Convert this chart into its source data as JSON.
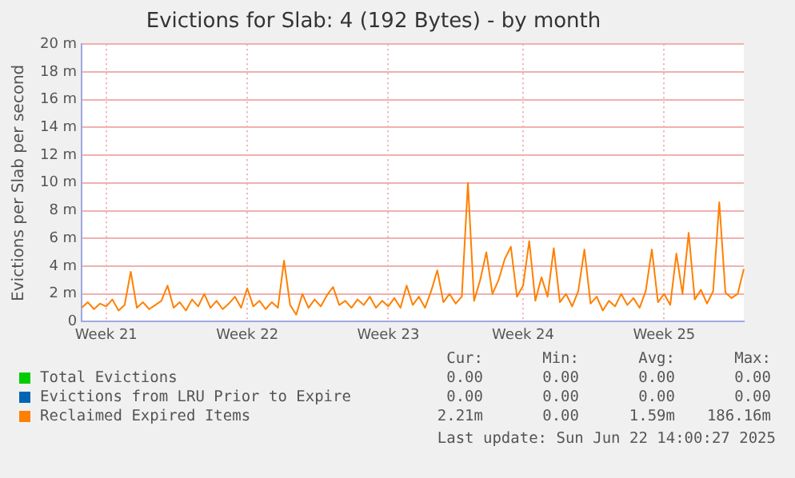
{
  "chart_data": {
    "type": "line",
    "title": "Evictions for Slab: 4 (192 Bytes) - by month",
    "ylabel": "Evictions per Slab per second",
    "categories": [
      null,
      null,
      null,
      null,
      "Week 21",
      null,
      null,
      null,
      null,
      null,
      null,
      null,
      null,
      null,
      null,
      null,
      null,
      null,
      null,
      null,
      null,
      null,
      null,
      null,
      null,
      null,
      null,
      "Week 22",
      null,
      null,
      null,
      null,
      null,
      null,
      null,
      null,
      null,
      null,
      null,
      null,
      null,
      null,
      null,
      null,
      null,
      null,
      null,
      null,
      null,
      null,
      "Week 23",
      null,
      null,
      null,
      null,
      null,
      null,
      null,
      null,
      null,
      null,
      null,
      null,
      null,
      null,
      null,
      null,
      null,
      null,
      null,
      null,
      null,
      "Week 24",
      null,
      null,
      null,
      null,
      null,
      null,
      null,
      null,
      null,
      null,
      null,
      null,
      null,
      null,
      null,
      null,
      null,
      null,
      null,
      null,
      null,
      null,
      "Week 25",
      null,
      null,
      null,
      null,
      null,
      null,
      null,
      null,
      null,
      null,
      null,
      null,
      null
    ],
    "ylim": [
      0,
      20
    ],
    "yticks": [
      0,
      {
        "value": 2,
        "label": "2 m"
      },
      {
        "value": 4,
        "label": "4 m"
      },
      {
        "value": 6,
        "label": "6 m"
      },
      {
        "value": 8,
        "label": "8 m"
      },
      {
        "value": 10,
        "label": "10 m"
      },
      {
        "value": 12,
        "label": "12 m"
      },
      {
        "value": 14,
        "label": "14 m"
      },
      {
        "value": 16,
        "label": "16 m"
      },
      {
        "value": 18,
        "label": "18 m"
      },
      {
        "value": 20,
        "label": "20 m"
      }
    ],
    "grid": true,
    "legend": "bottom",
    "marker": "none",
    "series": [
      {
        "name": "Total Evictions",
        "color": "#00cc00",
        "values": [
          null,
          null,
          null,
          null,
          null,
          null,
          null,
          null,
          null,
          null,
          null,
          null,
          null,
          null,
          null,
          null,
          null,
          null,
          null,
          null,
          null,
          null,
          null,
          null,
          null,
          null,
          null,
          null,
          null,
          null,
          null,
          null,
          null,
          null,
          null,
          null,
          null,
          null,
          null,
          null,
          null,
          null,
          null,
          null,
          null,
          null,
          null,
          null,
          null,
          null,
          null,
          null,
          null,
          null,
          null,
          null,
          null,
          null,
          null,
          null,
          null,
          null,
          null,
          null,
          null,
          null,
          null,
          null,
          null,
          null,
          null,
          null,
          null,
          null,
          null,
          null,
          null,
          null,
          null,
          null,
          null,
          null,
          null,
          null,
          null,
          null,
          null,
          null,
          null,
          null,
          null,
          null,
          null,
          null,
          null,
          null,
          null,
          null,
          null,
          null,
          null,
          null,
          null,
          null,
          null,
          null,
          null,
          null,
          null
        ]
      },
      {
        "name": "Evictions from LRU Prior to Expire",
        "color": "#0066b3",
        "values": [
          null,
          null,
          null,
          null,
          null,
          null,
          null,
          null,
          null,
          null,
          null,
          null,
          null,
          null,
          null,
          null,
          null,
          null,
          null,
          null,
          null,
          null,
          null,
          null,
          null,
          null,
          null,
          null,
          null,
          null,
          null,
          null,
          null,
          null,
          null,
          null,
          null,
          null,
          null,
          null,
          null,
          null,
          null,
          null,
          null,
          null,
          null,
          null,
          null,
          null,
          null,
          null,
          null,
          null,
          null,
          null,
          null,
          null,
          null,
          null,
          null,
          null,
          null,
          null,
          null,
          null,
          null,
          null,
          null,
          null,
          null,
          null,
          null,
          null,
          null,
          null,
          null,
          null,
          null,
          null,
          null,
          null,
          null,
          null,
          null,
          null,
          null,
          null,
          null,
          null,
          null,
          null,
          null,
          null,
          null,
          null,
          null,
          null,
          null,
          null,
          null,
          null,
          null,
          null,
          null,
          null,
          null,
          null,
          null
        ]
      },
      {
        "name": "Reclaimed Expired Items",
        "color": "#ff8000",
        "values": [
          1.0,
          1.4,
          0.9,
          1.3,
          1.1,
          1.6,
          0.8,
          1.2,
          3.6,
          1.0,
          1.4,
          0.9,
          1.2,
          1.5,
          2.6,
          1.0,
          1.4,
          0.8,
          1.6,
          1.1,
          2.0,
          1.0,
          1.5,
          0.9,
          1.3,
          1.8,
          1.0,
          2.4,
          1.1,
          1.5,
          0.9,
          1.4,
          1.0,
          4.4,
          1.2,
          0.5,
          2.0,
          1.0,
          1.6,
          1.1,
          1.9,
          2.5,
          1.2,
          1.5,
          1.0,
          1.6,
          1.2,
          1.8,
          1.0,
          1.5,
          1.1,
          1.7,
          1.0,
          2.6,
          1.2,
          1.8,
          1.0,
          2.2,
          3.7,
          1.4,
          2.0,
          1.3,
          1.8,
          10.0,
          1.5,
          3.0,
          5.0,
          2.0,
          3.0,
          4.5,
          5.4,
          1.8,
          2.6,
          5.8,
          1.5,
          3.2,
          1.8,
          5.3,
          1.4,
          2.0,
          1.1,
          2.2,
          5.2,
          1.3,
          1.8,
          0.8,
          1.5,
          1.1,
          2.0,
          1.2,
          1.7,
          1.0,
          2.2,
          5.2,
          1.4,
          2.0,
          1.2,
          4.9,
          2.0,
          6.4,
          1.6,
          2.3,
          1.3,
          2.2,
          8.6,
          2.1,
          1.7,
          2.0,
          3.8
        ]
      }
    ],
    "annotations": [
      "Cur:",
      "Min:",
      "Avg:",
      "Max:",
      "0.00",
      "0.00",
      "0.00",
      "0.00",
      "0.00",
      "0.00",
      "0.00",
      "0.00",
      "2.21m",
      "0.00",
      "1.59m",
      "186.16m",
      "Last update: Sun Jun 22 14:00:27 2025"
    ]
  }
}
